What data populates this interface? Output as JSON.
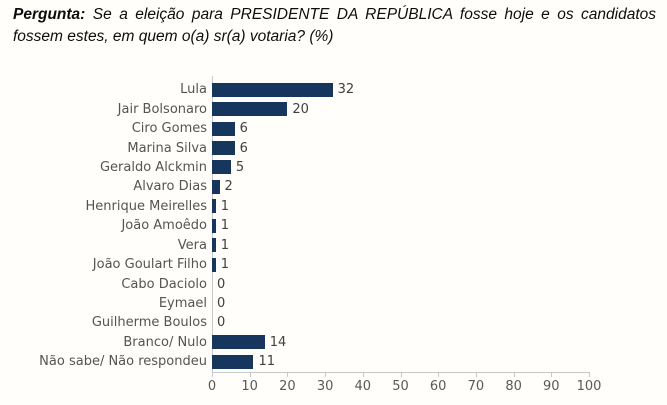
{
  "header": {
    "label": "Pergunta:",
    "line1": "Se a eleição para PRESIDENTE DA REPÚBLICA fosse hoje e os candidatos",
    "line2": "fossem estes, em quem o(a) sr(a) votaria? (%)"
  },
  "chart_data": {
    "type": "bar",
    "orientation": "horizontal",
    "title": "Pergunta: Se a eleição para PRESIDENTE DA REPÚBLICA fosse hoje e os candidatos fossem estes, em quem o(a) sr(a) votaria? (%)",
    "categories": [
      "Lula",
      "Jair Bolsonaro",
      "Ciro Gomes",
      "Marina Silva",
      "Geraldo Alckmin",
      "Alvaro Dias",
      "Henrique Meirelles",
      "João Amoêdo",
      "Vera",
      "João Goulart Filho",
      "Cabo Daciolo",
      "Eymael",
      "Guilherme Boulos",
      "Branco/ Nulo",
      "Não sabe/ Não respondeu"
    ],
    "values": [
      32,
      20,
      6,
      6,
      5,
      2,
      1,
      1,
      1,
      1,
      0,
      0,
      0,
      14,
      11
    ],
    "x_ticks": [
      0,
      10,
      20,
      30,
      40,
      50,
      60,
      70,
      80,
      90,
      100
    ],
    "xlim": [
      0,
      100
    ],
    "unit": "%",
    "grid": false,
    "legend": false,
    "bar_color": "#17365D",
    "category_label_color": "#545454",
    "value_label_color": "#404040",
    "axis_color": "#C8C8C8",
    "tick_label_color": "#595959"
  }
}
